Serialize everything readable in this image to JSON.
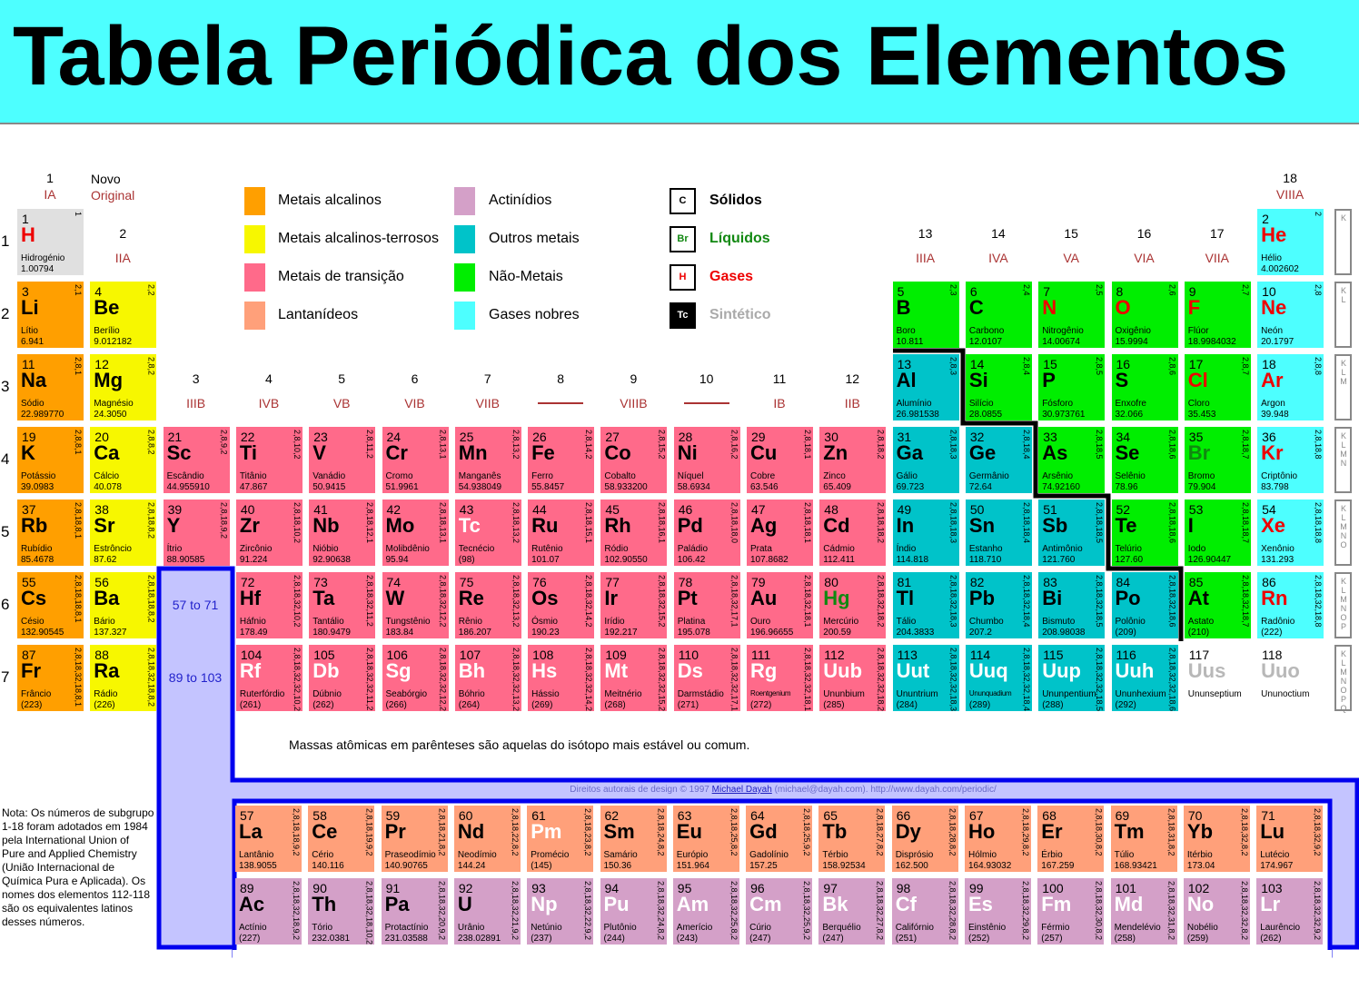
{
  "title": "Tabela Periódica dos Elementos",
  "colors": {
    "alkali": "#ff9f00",
    "alkaline": "#f7f700",
    "transition": "#ff6a8a",
    "lanthanide": "#ffa07a",
    "actinide": "#d4a0c8",
    "other": "#00c3c9",
    "nonmetal": "#00ee00",
    "noble": "#4dffff",
    "hydrogen": "#e0e0e0",
    "unknown": "#ffffff",
    "gas": "#ee0000",
    "liquid": "#118811",
    "synthetic": "#ffffff",
    "solid": "#000000",
    "unknownSymbol": "#b8b8b8",
    "frame": "#0000ee",
    "frameFill": "#c4c4ff"
  },
  "groups": [
    {
      "num": "1",
      "roman": "IA"
    },
    {
      "num": "2",
      "roman": "IIA"
    },
    {
      "num": "3",
      "roman": "IIIB"
    },
    {
      "num": "4",
      "roman": "IVB"
    },
    {
      "num": "5",
      "roman": "VB"
    },
    {
      "num": "6",
      "roman": "VIB"
    },
    {
      "num": "7",
      "roman": "VIIB"
    },
    {
      "num": "8",
      "roman": ""
    },
    {
      "num": "9",
      "roman": "VIIIB"
    },
    {
      "num": "10",
      "roman": ""
    },
    {
      "num": "11",
      "roman": "IB"
    },
    {
      "num": "12",
      "roman": "IIB"
    },
    {
      "num": "13",
      "roman": "IIIA"
    },
    {
      "num": "14",
      "roman": "IVA"
    },
    {
      "num": "15",
      "roman": "VA"
    },
    {
      "num": "16",
      "roman": "VIA"
    },
    {
      "num": "17",
      "roman": "VIIA"
    },
    {
      "num": "18",
      "roman": "VIIIA"
    }
  ],
  "header_key": {
    "new": "Novo",
    "original": "Original"
  },
  "periods": [
    "1",
    "2",
    "3",
    "4",
    "5",
    "6",
    "7"
  ],
  "shell_labels": [
    "K",
    "KL",
    "KLM",
    "KLMN",
    "KLMNO",
    "KLMNOP",
    "KLMNOPQ"
  ],
  "legend": {
    "categories": [
      {
        "key": "alkali",
        "label": "Metais alcalinos"
      },
      {
        "key": "alkaline",
        "label": "Metais alcalinos-terrosos"
      },
      {
        "key": "transition",
        "label": "Metais de transição"
      },
      {
        "key": "lanthanide",
        "label": "Lantanídeos"
      },
      {
        "key": "actinide",
        "label": "Actinídios"
      },
      {
        "key": "other",
        "label": "Outros metais"
      },
      {
        "key": "nonmetal",
        "label": "Não-Metais"
      },
      {
        "key": "noble",
        "label": "Gases nobres"
      }
    ],
    "states": [
      {
        "symbol": "C",
        "label": "Sólidos",
        "key": "solid"
      },
      {
        "symbol": "Br",
        "label": "Líquidos",
        "key": "liquid"
      },
      {
        "symbol": "H",
        "label": "Gases",
        "key": "gas"
      },
      {
        "symbol": "Tc",
        "label": "Sintético",
        "key": "synthetic"
      }
    ]
  },
  "placeholders": {
    "lanthanides": "57 to 71",
    "actinides": "89 to 103"
  },
  "mass_note": "Massas atômicas em parênteses são aquelas do isótopo mais estável ou comum.",
  "copyright": {
    "prefix": "Direitos autorais de design © 1997 ",
    "author": "Michael Dayah",
    "suffix": " (michael@dayah.com). http://www.dayah.com/periodic/"
  },
  "note": "Nota: Os números de subgrupo 1-18 foram adotados em 1984 pela International Union of Pure and Applied Chemistry (União Internacional de Química Pura e Aplicada). Os nomes dos elementos 112-118 são os equivalentes latinos desses números.",
  "elements": [
    [
      1,
      "H",
      "Hidrogénio",
      "1.00794",
      "1",
      "hydrogen",
      "gas"
    ],
    [
      2,
      "He",
      "Hélio",
      "4.002602",
      "2",
      "noble",
      "gas"
    ],
    [
      3,
      "Li",
      "Lítio",
      "6.941",
      "2,1",
      "alkali",
      "solid"
    ],
    [
      4,
      "Be",
      "Berílio",
      "9.012182",
      "2,2",
      "alkaline",
      "solid"
    ],
    [
      5,
      "B",
      "Boro",
      "10.811",
      "2,3",
      "nonmetal",
      "solid"
    ],
    [
      6,
      "C",
      "Carbono",
      "12.0107",
      "2,4",
      "nonmetal",
      "solid"
    ],
    [
      7,
      "N",
      "Nitrogênio",
      "14.00674",
      "2,5",
      "nonmetal",
      "gas"
    ],
    [
      8,
      "O",
      "Oxigênio",
      "15.9994",
      "2,6",
      "nonmetal",
      "gas"
    ],
    [
      9,
      "F",
      "Flúor",
      "18.9984032",
      "2,7",
      "nonmetal",
      "gas"
    ],
    [
      10,
      "Ne",
      "Neón",
      "20.1797",
      "2,8",
      "noble",
      "gas"
    ],
    [
      11,
      "Na",
      "Sódio",
      "22.989770",
      "2,8,1",
      "alkali",
      "solid"
    ],
    [
      12,
      "Mg",
      "Magnésio",
      "24.3050",
      "2,8,2",
      "alkaline",
      "solid"
    ],
    [
      13,
      "Al",
      "Alumínio",
      "26.981538",
      "2,8,3",
      "other",
      "solid"
    ],
    [
      14,
      "Si",
      "Silício",
      "28.0855",
      "2,8,4",
      "nonmetal",
      "solid"
    ],
    [
      15,
      "P",
      "Fósforo",
      "30.973761",
      "2,8,5",
      "nonmetal",
      "solid"
    ],
    [
      16,
      "S",
      "Enxofre",
      "32.066",
      "2,8,6",
      "nonmetal",
      "solid"
    ],
    [
      17,
      "Cl",
      "Cloro",
      "35.453",
      "2,8,7",
      "nonmetal",
      "gas"
    ],
    [
      18,
      "Ar",
      "Argon",
      "39.948",
      "2,8,8",
      "noble",
      "gas"
    ],
    [
      19,
      "K",
      "Potássio",
      "39.0983",
      "2,8,8,1",
      "alkali",
      "solid"
    ],
    [
      20,
      "Ca",
      "Cálcio",
      "40.078",
      "2,8,8,2",
      "alkaline",
      "solid"
    ],
    [
      21,
      "Sc",
      "Escândio",
      "44.955910",
      "2,8,9,2",
      "transition",
      "solid"
    ],
    [
      22,
      "Ti",
      "Titânio",
      "47.867",
      "2,8,10,2",
      "transition",
      "solid"
    ],
    [
      23,
      "V",
      "Vanádio",
      "50.9415",
      "2,8,11,2",
      "transition",
      "solid"
    ],
    [
      24,
      "Cr",
      "Cromo",
      "51.9961",
      "2,8,13,1",
      "transition",
      "solid"
    ],
    [
      25,
      "Mn",
      "Manganês",
      "54.938049",
      "2,8,13,2",
      "transition",
      "solid"
    ],
    [
      26,
      "Fe",
      "Ferro",
      "55.8457",
      "2,8,14,2",
      "transition",
      "solid"
    ],
    [
      27,
      "Co",
      "Cobalto",
      "58.933200",
      "2,8,15,2",
      "transition",
      "solid"
    ],
    [
      28,
      "Ni",
      "Níquel",
      "58.6934",
      "2,8,16,2",
      "transition",
      "solid"
    ],
    [
      29,
      "Cu",
      "Cobre",
      "63.546",
      "2,8,18,1",
      "transition",
      "solid"
    ],
    [
      30,
      "Zn",
      "Zinco",
      "65.409",
      "2,8,18,2",
      "transition",
      "solid"
    ],
    [
      31,
      "Ga",
      "Gálio",
      "69.723",
      "2,8,18,3",
      "other",
      "solid"
    ],
    [
      32,
      "Ge",
      "Germânio",
      "72.64",
      "2,8,18,4",
      "other",
      "solid"
    ],
    [
      33,
      "As",
      "Arsênio",
      "74.92160",
      "2,8,18,5",
      "nonmetal",
      "solid"
    ],
    [
      34,
      "Se",
      "Selênio",
      "78.96",
      "2,8,18,6",
      "nonmetal",
      "solid"
    ],
    [
      35,
      "Br",
      "Bromo",
      "79.904",
      "2,8,18,7",
      "nonmetal",
      "liquid"
    ],
    [
      36,
      "Kr",
      "Criptônio",
      "83.798",
      "2,8,18,8",
      "noble",
      "gas"
    ],
    [
      37,
      "Rb",
      "Rubídio",
      "85.4678",
      "2,8,18,8,1",
      "alkali",
      "solid"
    ],
    [
      38,
      "Sr",
      "Estrôncio",
      "87.62",
      "2,8,18,8,2",
      "alkaline",
      "solid"
    ],
    [
      39,
      "Y",
      "Ítrio",
      "88.90585",
      "2,8,18,9,2",
      "transition",
      "solid"
    ],
    [
      40,
      "Zr",
      "Zircônio",
      "91.224",
      "2,8,18,10,2",
      "transition",
      "solid"
    ],
    [
      41,
      "Nb",
      "Nióbio",
      "92.90638",
      "2,8,18,12,1",
      "transition",
      "solid"
    ],
    [
      42,
      "Mo",
      "Molibdênio",
      "95.94",
      "2,8,18,13,1",
      "transition",
      "solid"
    ],
    [
      43,
      "Tc",
      "Tecnécio",
      "(98)",
      "2,8,18,13,2",
      "transition",
      "synthetic"
    ],
    [
      44,
      "Ru",
      "Rutênio",
      "101.07",
      "2,8,18,15,1",
      "transition",
      "solid"
    ],
    [
      45,
      "Rh",
      "Ródio",
      "102.90550",
      "2,8,18,16,1",
      "transition",
      "solid"
    ],
    [
      46,
      "Pd",
      "Paládio",
      "106.42",
      "2,8,18,18,0",
      "transition",
      "solid"
    ],
    [
      47,
      "Ag",
      "Prata",
      "107.8682",
      "2,8,18,18,1",
      "transition",
      "solid"
    ],
    [
      48,
      "Cd",
      "Cádmio",
      "112.411",
      "2,8,18,18,2",
      "transition",
      "solid"
    ],
    [
      49,
      "In",
      "Índio",
      "114.818",
      "2,8,18,18,3",
      "other",
      "solid"
    ],
    [
      50,
      "Sn",
      "Estanho",
      "118.710",
      "2,8,18,18,4",
      "other",
      "solid"
    ],
    [
      51,
      "Sb",
      "Antimônio",
      "121.760",
      "2,8,18,18,5",
      "other",
      "solid"
    ],
    [
      52,
      "Te",
      "Telúrio",
      "127.60",
      "2,8,18,18,6",
      "nonmetal",
      "solid"
    ],
    [
      53,
      "I",
      "Iodo",
      "126.90447",
      "2,8,18,18,7",
      "nonmetal",
      "solid"
    ],
    [
      54,
      "Xe",
      "Xenônio",
      "131.293",
      "2,8,18,18,8",
      "noble",
      "gas"
    ],
    [
      55,
      "Cs",
      "Césio",
      "132.90545",
      "2,8,18,18,8,1",
      "alkali",
      "solid"
    ],
    [
      56,
      "Ba",
      "Bário",
      "137.327",
      "2,8,18,18,8,2",
      "alkaline",
      "solid"
    ],
    [
      57,
      "La",
      "Lantânio",
      "138.9055",
      "2,8,18,18,9,2",
      "lanthanide",
      "solid"
    ],
    [
      58,
      "Ce",
      "Cério",
      "140.116",
      "2,8,18,19,9,2",
      "lanthanide",
      "solid"
    ],
    [
      59,
      "Pr",
      "Praseodímio",
      "140.90765",
      "2,8,18,21,8,2",
      "lanthanide",
      "solid"
    ],
    [
      60,
      "Nd",
      "Neodímio",
      "144.24",
      "2,8,18,22,8,2",
      "lanthanide",
      "solid"
    ],
    [
      61,
      "Pm",
      "Promécio",
      "(145)",
      "2,8,18,23,8,2",
      "lanthanide",
      "synthetic"
    ],
    [
      62,
      "Sm",
      "Samário",
      "150.36",
      "2,8,18,24,8,2",
      "lanthanide",
      "solid"
    ],
    [
      63,
      "Eu",
      "Európio",
      "151.964",
      "2,8,18,25,8,2",
      "lanthanide",
      "solid"
    ],
    [
      64,
      "Gd",
      "Gadolínio",
      "157.25",
      "2,8,18,25,9,2",
      "lanthanide",
      "solid"
    ],
    [
      65,
      "Tb",
      "Térbio",
      "158.92534",
      "2,8,18,27,8,2",
      "lanthanide",
      "solid"
    ],
    [
      66,
      "Dy",
      "Disprósio",
      "162.500",
      "2,8,18,28,8,2",
      "lanthanide",
      "solid"
    ],
    [
      67,
      "Ho",
      "Hólmio",
      "164.93032",
      "2,8,18,29,8,2",
      "lanthanide",
      "solid"
    ],
    [
      68,
      "Er",
      "Érbio",
      "167.259",
      "2,8,18,30,8,2",
      "lanthanide",
      "solid"
    ],
    [
      69,
      "Tm",
      "Túlio",
      "168.93421",
      "2,8,18,31,8,2",
      "lanthanide",
      "solid"
    ],
    [
      70,
      "Yb",
      "Itérbio",
      "173.04",
      "2,8,18,32,8,2",
      "lanthanide",
      "solid"
    ],
    [
      71,
      "Lu",
      "Lutécio",
      "174.967",
      "2,8,18,32,9,2",
      "lanthanide",
      "solid"
    ],
    [
      72,
      "Hf",
      "Háfnio",
      "178.49",
      "2,8,18,32,10,2",
      "transition",
      "solid"
    ],
    [
      73,
      "Ta",
      "Tantálio",
      "180.9479",
      "2,8,18,32,11,2",
      "transition",
      "solid"
    ],
    [
      74,
      "W",
      "Tungstênio",
      "183.84",
      "2,8,18,32,12,2",
      "transition",
      "solid"
    ],
    [
      75,
      "Re",
      "Rênio",
      "186.207",
      "2,8,18,32,13,2",
      "transition",
      "solid"
    ],
    [
      76,
      "Os",
      "Ósmio",
      "190.23",
      "2,8,18,32,14,2",
      "transition",
      "solid"
    ],
    [
      77,
      "Ir",
      "Irídio",
      "192.217",
      "2,8,18,32,15,2",
      "transition",
      "solid"
    ],
    [
      78,
      "Pt",
      "Platina",
      "195.078",
      "2,8,18,32,17,1",
      "transition",
      "solid"
    ],
    [
      79,
      "Au",
      "Ouro",
      "196.96655",
      "2,8,18,32,18,1",
      "transition",
      "solid"
    ],
    [
      80,
      "Hg",
      "Mercúrio",
      "200.59",
      "2,8,18,32,18,2",
      "transition",
      "liquid"
    ],
    [
      81,
      "Tl",
      "Tálio",
      "204.3833",
      "2,8,18,32,18,3",
      "other",
      "solid"
    ],
    [
      82,
      "Pb",
      "Chumbo",
      "207.2",
      "2,8,18,32,18,4",
      "other",
      "solid"
    ],
    [
      83,
      "Bi",
      "Bismuto",
      "208.98038",
      "2,8,18,32,18,5",
      "other",
      "solid"
    ],
    [
      84,
      "Po",
      "Polônio",
      "(209)",
      "2,8,18,32,18,6",
      "other",
      "solid"
    ],
    [
      85,
      "At",
      "Astato",
      "(210)",
      "2,8,18,32,18,7",
      "nonmetal",
      "solid"
    ],
    [
      86,
      "Rn",
      "Radônio",
      "(222)",
      "2,8,18,32,18,8",
      "noble",
      "gas"
    ],
    [
      87,
      "Fr",
      "Frâncio",
      "(223)",
      "2,8,18,32,18,8,1",
      "alkali",
      "solid"
    ],
    [
      88,
      "Ra",
      "Rádio",
      "(226)",
      "2,8,18,32,18,8,2",
      "alkaline",
      "solid"
    ],
    [
      89,
      "Ac",
      "Actínio",
      "(227)",
      "2,8,18,32,18,9,2",
      "actinide",
      "solid"
    ],
    [
      90,
      "Th",
      "Tório",
      "232.0381",
      "2,8,18,32,18,10,2",
      "actinide",
      "solid"
    ],
    [
      91,
      "Pa",
      "Protactínio",
      "231.03588",
      "2,8,18,32,20,9,2",
      "actinide",
      "solid"
    ],
    [
      92,
      "U",
      "Urânio",
      "238.02891",
      "2,8,18,32,21,9,2",
      "actinide",
      "solid"
    ],
    [
      93,
      "Np",
      "Netúnio",
      "(237)",
      "2,8,18,32,22,9,2",
      "actinide",
      "synthetic"
    ],
    [
      94,
      "Pu",
      "Plutônio",
      "(244)",
      "2,8,18,32,24,8,2",
      "actinide",
      "synthetic"
    ],
    [
      95,
      "Am",
      "Amerício",
      "(243)",
      "2,8,18,32,25,8,2",
      "actinide",
      "synthetic"
    ],
    [
      96,
      "Cm",
      "Cúrio",
      "(247)",
      "2,8,18,32,25,9,2",
      "actinide",
      "synthetic"
    ],
    [
      97,
      "Bk",
      "Berquélio",
      "(247)",
      "2,8,18,32,27,8,2",
      "actinide",
      "synthetic"
    ],
    [
      98,
      "Cf",
      "Califórnio",
      "(251)",
      "2,8,18,32,28,8,2",
      "actinide",
      "synthetic"
    ],
    [
      99,
      "Es",
      "Einstênio",
      "(252)",
      "2,8,18,32,29,8,2",
      "actinide",
      "synthetic"
    ],
    [
      100,
      "Fm",
      "Férmio",
      "(257)",
      "2,8,18,32,30,8,2",
      "actinide",
      "synthetic"
    ],
    [
      101,
      "Md",
      "Mendelévio",
      "(258)",
      "2,8,18,32,31,8,2",
      "actinide",
      "synthetic"
    ],
    [
      102,
      "No",
      "Nobélio",
      "(259)",
      "2,8,18,32,32,8,2",
      "actinide",
      "synthetic"
    ],
    [
      103,
      "Lr",
      "Laurêncio",
      "(262)",
      "2,8,18,32,32,9,2",
      "actinide",
      "synthetic"
    ],
    [
      104,
      "Rf",
      "Ruterfórdio",
      "(261)",
      "2,8,18,32,32,10,2",
      "transition",
      "synthetic"
    ],
    [
      105,
      "Db",
      "Dúbnio",
      "(262)",
      "2,8,18,32,32,11,2",
      "transition",
      "synthetic"
    ],
    [
      106,
      "Sg",
      "Seabórgio",
      "(266)",
      "2,8,18,32,32,12,2",
      "transition",
      "synthetic"
    ],
    [
      107,
      "Bh",
      "Bóhrio",
      "(264)",
      "2,8,18,32,32,13,2",
      "transition",
      "synthetic"
    ],
    [
      108,
      "Hs",
      "Hássio",
      "(269)",
      "2,8,18,32,32,14,2",
      "transition",
      "synthetic"
    ],
    [
      109,
      "Mt",
      "Meitnério",
      "(268)",
      "2,8,18,32,32,15,2",
      "transition",
      "synthetic"
    ],
    [
      110,
      "Ds",
      "Darmstádio",
      "(271)",
      "2,8,18,32,32,17,1",
      "transition",
      "synthetic"
    ],
    [
      111,
      "Rg",
      "Roentgenium",
      "(272)",
      "2,8,18,32,32,18,1",
      "transition",
      "synthetic"
    ],
    [
      112,
      "Uub",
      "Ununbium",
      "(285)",
      "2,8,18,32,32,18,2",
      "transition",
      "synthetic"
    ],
    [
      113,
      "Uut",
      "Ununtrium",
      "(284)",
      "2,8,18,32,32,18,3",
      "other",
      "synthetic"
    ],
    [
      114,
      "Uuq",
      "Ununquadium",
      "(289)",
      "2,8,18,32,32,18,4",
      "other",
      "synthetic"
    ],
    [
      115,
      "Uup",
      "Ununpentium",
      "(288)",
      "2,8,18,32,32,18,5",
      "other",
      "synthetic"
    ],
    [
      116,
      "Uuh",
      "Ununhexium",
      "(292)",
      "2,8,18,32,32,18,6",
      "other",
      "synthetic"
    ],
    [
      117,
      "Uus",
      "Ununseptium",
      "",
      "",
      "unknown",
      "unknown"
    ],
    [
      118,
      "Uuo",
      "Ununoctium",
      "",
      "",
      "unknown",
      "unknown"
    ]
  ]
}
